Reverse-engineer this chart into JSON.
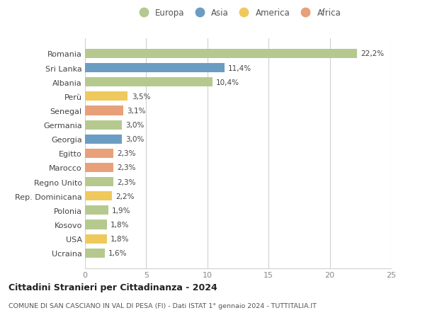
{
  "countries": [
    "Romania",
    "Sri Lanka",
    "Albania",
    "Perù",
    "Senegal",
    "Germania",
    "Georgia",
    "Egitto",
    "Marocco",
    "Regno Unito",
    "Rep. Dominicana",
    "Polonia",
    "Kosovo",
    "USA",
    "Ucraina"
  ],
  "values": [
    22.2,
    11.4,
    10.4,
    3.5,
    3.1,
    3.0,
    3.0,
    2.3,
    2.3,
    2.3,
    2.2,
    1.9,
    1.8,
    1.8,
    1.6
  ],
  "labels": [
    "22,2%",
    "11,4%",
    "10,4%",
    "3,5%",
    "3,1%",
    "3,0%",
    "3,0%",
    "2,3%",
    "2,3%",
    "2,3%",
    "2,2%",
    "1,9%",
    "1,8%",
    "1,8%",
    "1,6%"
  ],
  "continents": [
    "Europa",
    "Asia",
    "Europa",
    "America",
    "Africa",
    "Europa",
    "Asia",
    "Africa",
    "Africa",
    "Europa",
    "America",
    "Europa",
    "Europa",
    "America",
    "Europa"
  ],
  "colors": {
    "Europa": "#b5c98e",
    "Asia": "#6b9dc2",
    "America": "#f0c95c",
    "Africa": "#e8a07a"
  },
  "legend_order": [
    "Europa",
    "Asia",
    "America",
    "Africa"
  ],
  "xlim": [
    0,
    25
  ],
  "xticks": [
    0,
    5,
    10,
    15,
    20,
    25
  ],
  "title": "Cittadini Stranieri per Cittadinanza - 2024",
  "subtitle": "COMUNE DI SAN CASCIANO IN VAL DI PESA (FI) - Dati ISTAT 1° gennaio 2024 - TUTTITALIA.IT",
  "bg_color": "#ffffff",
  "grid_color": "#d0d0d0",
  "bar_height": 0.65
}
